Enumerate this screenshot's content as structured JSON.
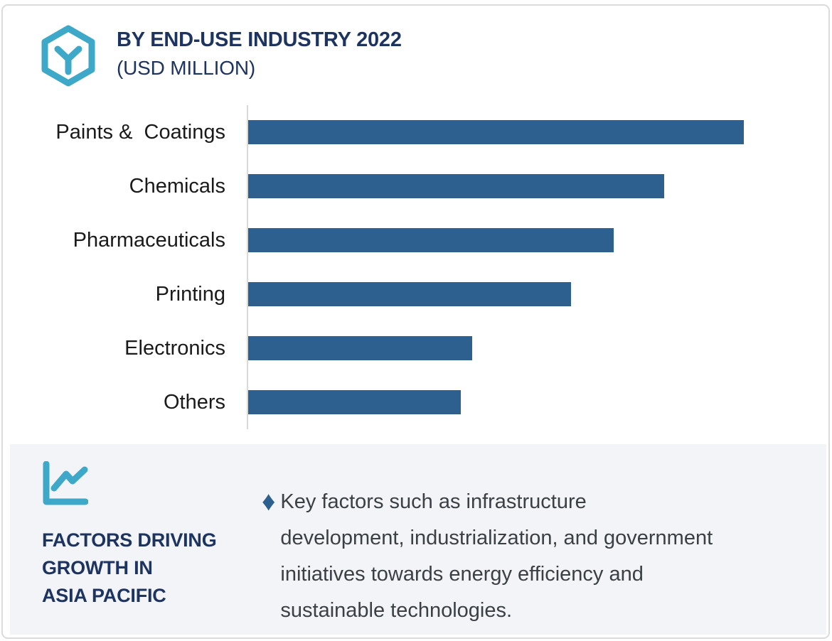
{
  "header": {
    "title_lines": [
      "BY END-USE INDUSTRY 2022",
      "(USD MILLION)"
    ],
    "logo_icon": "hexagon-y-logo"
  },
  "colors": {
    "accent_teal": "#3da8c8",
    "navy": "#1d3461",
    "bar_blue": "#2d608e",
    "panel_bg": "#f3f4f8",
    "body_text": "#3b4045",
    "label_text": "#1a1a1a",
    "axis_gray": "#d9d9d9",
    "card_border": "#dbdbdb"
  },
  "chart_data": {
    "type": "bar",
    "orientation": "horizontal",
    "title": "BY END-USE INDUSTRY 2022",
    "subtitle": "(USD MILLION)",
    "categories": [
      "Paints &  Coatings",
      "Chemicals",
      "Pharmaceuticals",
      "Printing",
      "Electronics",
      "Others"
    ],
    "values_pct_of_max": [
      100,
      83.9,
      73.7,
      65.1,
      45.2,
      42.9
    ],
    "value_labels_shown": false,
    "xlabel": "",
    "ylabel": "",
    "axis": {
      "value_ticks_shown": false,
      "gridlines": false,
      "baseline_side": "left"
    },
    "legend": "none",
    "bar_color": "#2d608e"
  },
  "factors_panel": {
    "icon": "line-chart-icon",
    "heading_lines": [
      "FACTORS DRIVING",
      "GROWTH IN",
      "ASIA PACIFIC"
    ],
    "bullet_glyph": "♦",
    "bullet_lines": [
      "Key factors such as infrastructure",
      "development, industrialization, and government",
      "initiatives towards energy efficiency and",
      "sustainable technologies."
    ]
  }
}
